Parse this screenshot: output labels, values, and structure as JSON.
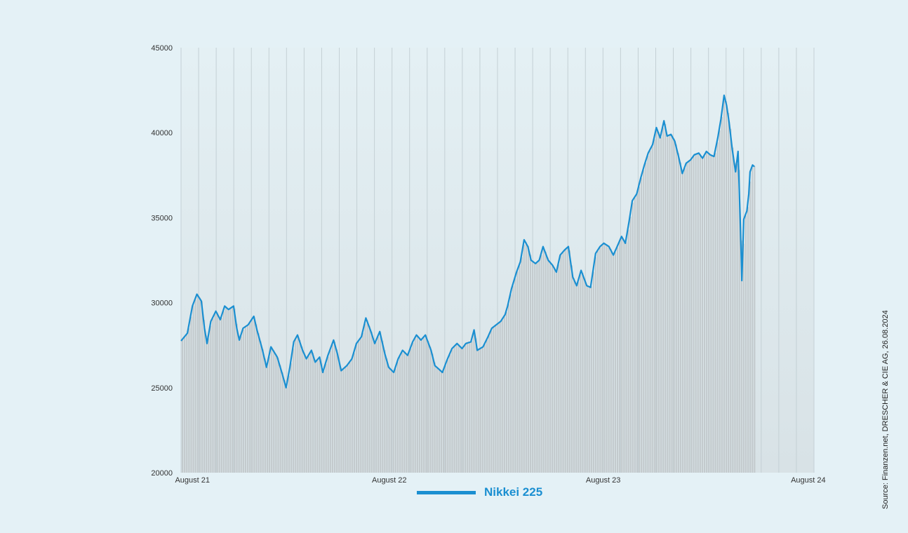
{
  "chart_data": {
    "type": "line",
    "series": [
      {
        "name": "Nikkei 225",
        "color": "#1a8fd1",
        "points": [
          [
            0.0,
            27750
          ],
          [
            0.01,
            28200
          ],
          [
            0.018,
            29800
          ],
          [
            0.025,
            30500
          ],
          [
            0.032,
            30100
          ],
          [
            0.037,
            28500
          ],
          [
            0.041,
            27600
          ],
          [
            0.047,
            28900
          ],
          [
            0.055,
            29500
          ],
          [
            0.062,
            29000
          ],
          [
            0.069,
            29800
          ],
          [
            0.075,
            29600
          ],
          [
            0.083,
            29800
          ],
          [
            0.088,
            28500
          ],
          [
            0.092,
            27800
          ],
          [
            0.098,
            28500
          ],
          [
            0.106,
            28700
          ],
          [
            0.115,
            29200
          ],
          [
            0.12,
            28400
          ],
          [
            0.128,
            27300
          ],
          [
            0.135,
            26200
          ],
          [
            0.142,
            27400
          ],
          [
            0.152,
            26800
          ],
          [
            0.16,
            25800
          ],
          [
            0.166,
            25000
          ],
          [
            0.172,
            26200
          ],
          [
            0.178,
            27700
          ],
          [
            0.184,
            28100
          ],
          [
            0.192,
            27200
          ],
          [
            0.198,
            26700
          ],
          [
            0.206,
            27200
          ],
          [
            0.212,
            26500
          ],
          [
            0.219,
            26800
          ],
          [
            0.224,
            25900
          ],
          [
            0.232,
            26900
          ],
          [
            0.241,
            27800
          ],
          [
            0.247,
            27000
          ],
          [
            0.253,
            26000
          ],
          [
            0.262,
            26300
          ],
          [
            0.27,
            26700
          ],
          [
            0.277,
            27600
          ],
          [
            0.285,
            28000
          ],
          [
            0.292,
            29100
          ],
          [
            0.3,
            28300
          ],
          [
            0.306,
            27600
          ],
          [
            0.314,
            28300
          ],
          [
            0.322,
            27000
          ],
          [
            0.328,
            26200
          ],
          [
            0.336,
            25900
          ],
          [
            0.343,
            26700
          ],
          [
            0.35,
            27200
          ],
          [
            0.358,
            26900
          ],
          [
            0.366,
            27700
          ],
          [
            0.372,
            28100
          ],
          [
            0.379,
            27800
          ],
          [
            0.386,
            28100
          ],
          [
            0.395,
            27200
          ],
          [
            0.401,
            26300
          ],
          [
            0.407,
            26100
          ],
          [
            0.413,
            25900
          ],
          [
            0.42,
            26600
          ],
          [
            0.428,
            27300
          ],
          [
            0.436,
            27600
          ],
          [
            0.444,
            27300
          ],
          [
            0.45,
            27600
          ],
          [
            0.458,
            27700
          ],
          [
            0.463,
            28400
          ],
          [
            0.468,
            27200
          ],
          [
            0.477,
            27400
          ],
          [
            0.485,
            28000
          ],
          [
            0.491,
            28500
          ],
          [
            0.498,
            28700
          ],
          [
            0.505,
            28900
          ],
          [
            0.512,
            29300
          ],
          [
            0.516,
            29800
          ],
          [
            0.522,
            30800
          ],
          [
            0.53,
            31800
          ],
          [
            0.536,
            32400
          ],
          [
            0.542,
            33700
          ],
          [
            0.548,
            33300
          ],
          [
            0.553,
            32500
          ],
          [
            0.56,
            32300
          ],
          [
            0.566,
            32500
          ],
          [
            0.572,
            33300
          ],
          [
            0.58,
            32500
          ],
          [
            0.587,
            32200
          ],
          [
            0.593,
            31800
          ],
          [
            0.599,
            32800
          ],
          [
            0.606,
            33100
          ],
          [
            0.612,
            33300
          ],
          [
            0.619,
            31500
          ],
          [
            0.625,
            31000
          ],
          [
            0.632,
            31900
          ],
          [
            0.641,
            31000
          ],
          [
            0.647,
            30900
          ],
          [
            0.655,
            32900
          ],
          [
            0.662,
            33300
          ],
          [
            0.668,
            33500
          ],
          [
            0.676,
            33300
          ],
          [
            0.683,
            32800
          ],
          [
            0.689,
            33300
          ],
          [
            0.696,
            33900
          ],
          [
            0.702,
            33500
          ],
          [
            0.708,
            34800
          ],
          [
            0.713,
            36000
          ],
          [
            0.72,
            36400
          ],
          [
            0.726,
            37300
          ],
          [
            0.732,
            38100
          ],
          [
            0.738,
            38800
          ],
          [
            0.745,
            39300
          ],
          [
            0.751,
            40300
          ],
          [
            0.757,
            39700
          ],
          [
            0.763,
            40700
          ],
          [
            0.768,
            39800
          ],
          [
            0.774,
            39900
          ],
          [
            0.78,
            39500
          ],
          [
            0.786,
            38600
          ],
          [
            0.792,
            37600
          ],
          [
            0.798,
            38200
          ],
          [
            0.805,
            38400
          ],
          [
            0.811,
            38700
          ],
          [
            0.818,
            38800
          ],
          [
            0.824,
            38500
          ],
          [
            0.83,
            38900
          ],
          [
            0.836,
            38700
          ],
          [
            0.842,
            38600
          ],
          [
            0.848,
            39700
          ],
          [
            0.853,
            40800
          ],
          [
            0.858,
            42200
          ],
          [
            0.862,
            41600
          ],
          [
            0.866,
            40600
          ],
          [
            0.871,
            39000
          ],
          [
            0.876,
            37700
          ],
          [
            0.88,
            38900
          ],
          [
            0.884,
            34200
          ],
          [
            0.886,
            31300
          ],
          [
            0.889,
            34900
          ],
          [
            0.894,
            35400
          ],
          [
            0.897,
            36400
          ],
          [
            0.899,
            37700
          ],
          [
            0.903,
            38100
          ],
          [
            0.906,
            38000
          ]
        ]
      }
    ],
    "x_ticks": [
      "August 21",
      "August 22",
      "August 23",
      "August 24"
    ],
    "y_ticks": [
      20000,
      25000,
      30000,
      35000,
      40000,
      45000
    ],
    "ylim": [
      20000,
      45000
    ],
    "grid": "vertical",
    "fill_bars": true
  },
  "legend": {
    "label": "Nikkei 225",
    "color": "#1a8fd1"
  },
  "source": "Source: Finanzen.net, DRESCHER & CIE AG, 26.08.2024"
}
